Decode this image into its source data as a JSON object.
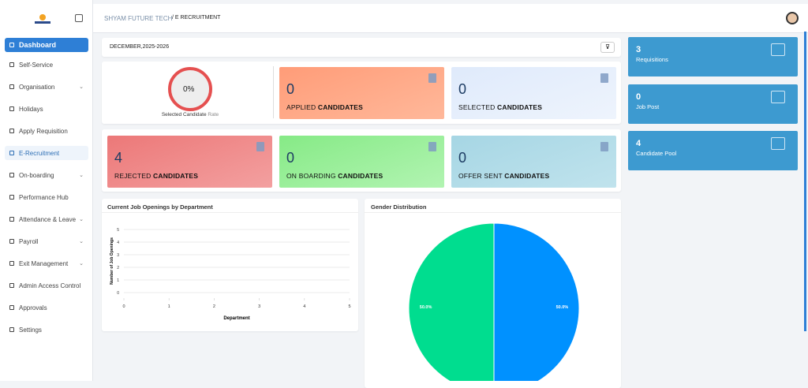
{
  "sidebar": {
    "items": [
      "Dashboard",
      "Self-Service",
      "Organisation",
      "Holidays",
      "Apply Requisition",
      "E-Recruitment",
      "On-boarding",
      "Performance Hub",
      "Attendance & Leave",
      "Payroll",
      "Exit Management",
      "Admin Access Control",
      "Approvals",
      "Settings"
    ]
  },
  "header": {
    "company": "SHYAM FUTURE TECH",
    "page": "/ E RECRUITMENT"
  },
  "filter": {
    "period": "DECEMBER,2025-2026"
  },
  "rate": {
    "value": "0%",
    "caption": "Selected Candidate",
    "caption_suffix": "Rate"
  },
  "cards": [
    {
      "value": 0,
      "prefix": "APPLIED",
      "suffix": "CANDIDATES"
    },
    {
      "value": 0,
      "prefix": "SELECTED",
      "suffix": "CANDIDATES"
    },
    {
      "value": 4,
      "prefix": "REJECTED",
      "suffix": "CANDIDATES"
    },
    {
      "value": 0,
      "prefix": "ON BOARDING",
      "suffix": "CANDIDATES"
    },
    {
      "value": 0,
      "prefix": "OFFER SENT",
      "suffix": "CANDIDATES"
    }
  ],
  "stats": [
    {
      "value": 3,
      "label": "Requisitions"
    },
    {
      "value": 0,
      "label": "Job Post"
    },
    {
      "value": 4,
      "label": "Candidate Pool"
    }
  ],
  "chart_data": [
    {
      "type": "bar",
      "title": "Current Job Openings by Department",
      "x_label": "Department",
      "y_label": "Number of Job Openings",
      "x": [],
      "values": [],
      "xlim": [
        0,
        5
      ],
      "xticks": [
        0,
        1,
        2,
        3,
        4,
        5
      ],
      "ylim": [
        0,
        5
      ],
      "yticks": [
        0,
        1,
        2,
        3,
        4,
        5
      ],
      "grid": true,
      "color": "#4a90d9"
    },
    {
      "type": "pie",
      "title": "Gender Distribution",
      "values": [
        50,
        50
      ],
      "value_labels": [
        "50.0%",
        "50.0%"
      ],
      "colors": [
        "#0091ff",
        "#00dd8f"
      ]
    }
  ]
}
